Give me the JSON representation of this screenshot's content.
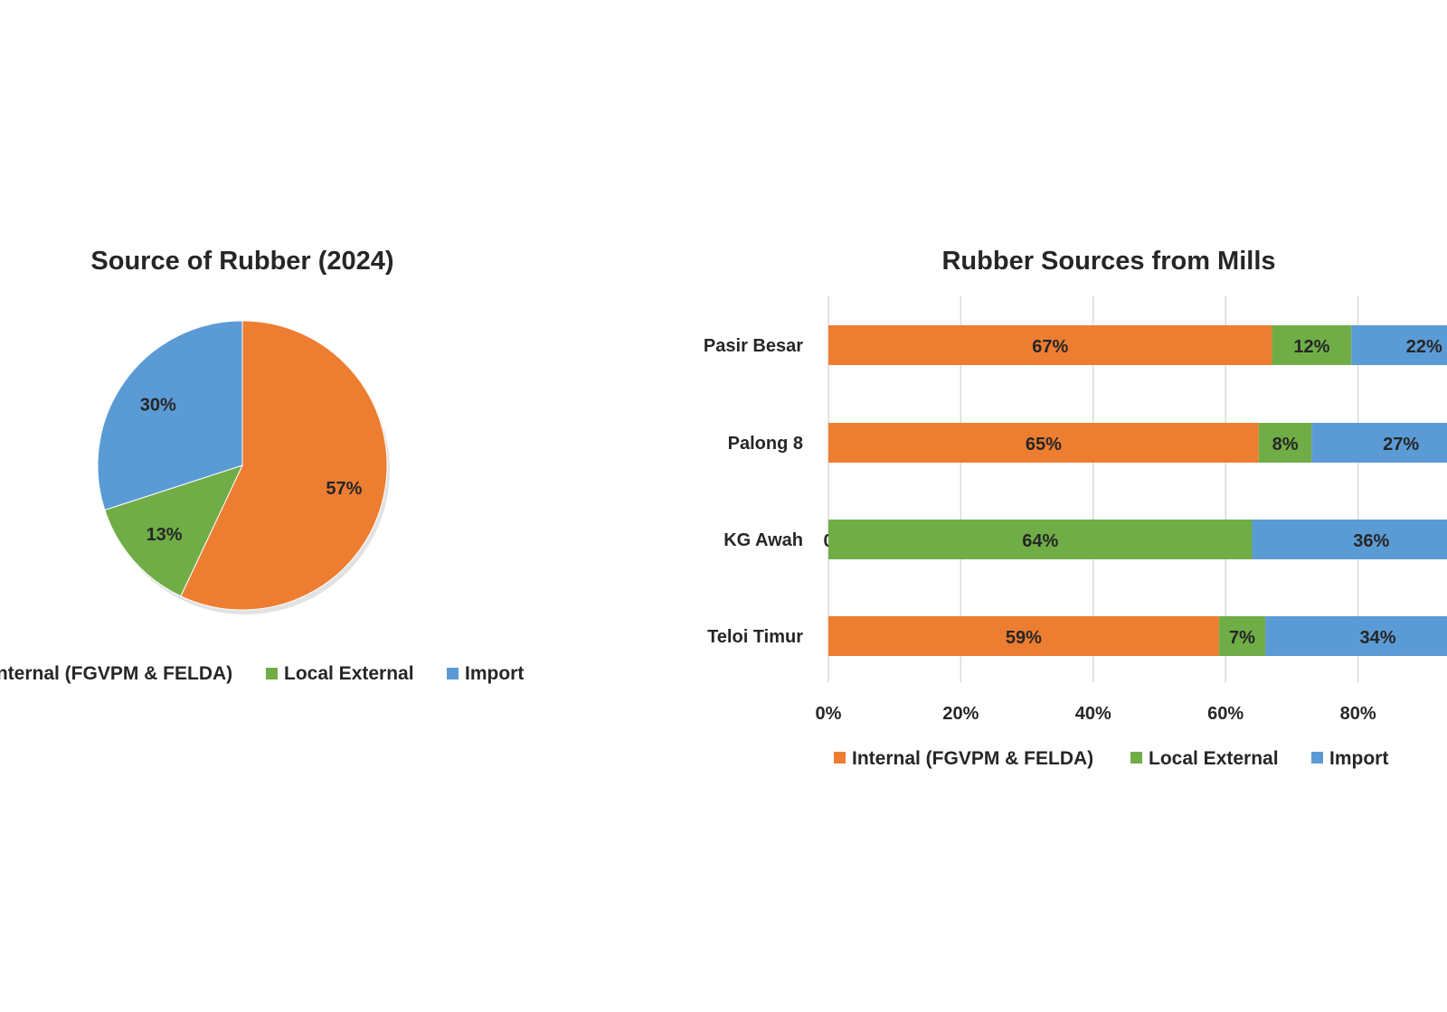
{
  "colors": {
    "internal": "#ED7D31",
    "local_external": "#70AD47",
    "import": "#5B9BD5"
  },
  "chart_data": [
    {
      "type": "pie",
      "title": "Source of Rubber (2024)",
      "slices": [
        {
          "name": "Internal (FGVPM & FELDA)",
          "value": 57,
          "label": "57%",
          "color_key": "internal"
        },
        {
          "name": "Local External",
          "value": 13,
          "label": "13%",
          "color_key": "local_external"
        },
        {
          "name": "Import",
          "value": 30,
          "label": "30%",
          "color_key": "import"
        }
      ],
      "legend": [
        "Internal (FGVPM & FELDA)",
        "Local External",
        "Import"
      ],
      "legend_position": "bottom"
    },
    {
      "type": "bar",
      "orientation": "horizontal",
      "stacked": true,
      "title": "Rubber Sources from Mills",
      "categories": [
        "Pasir Besar",
        "Palong 8",
        "KG Awah",
        "Teloi Timur"
      ],
      "series": [
        {
          "name": "Internal (FGVPM & FELDA)",
          "color_key": "internal",
          "values": [
            67,
            65,
            0,
            59
          ],
          "labels": [
            "67%",
            "65%",
            "0",
            "59%"
          ]
        },
        {
          "name": "Local External",
          "color_key": "local_external",
          "values": [
            12,
            8,
            64,
            7
          ],
          "labels": [
            "12%",
            "8%",
            "64%",
            "7%"
          ]
        },
        {
          "name": "Import",
          "color_key": "import",
          "values": [
            22,
            27,
            36,
            34
          ],
          "labels": [
            "22%",
            "27%",
            "36%",
            "34%"
          ]
        }
      ],
      "x_ticks": [
        "0%",
        "20%",
        "40%",
        "60%",
        "80%"
      ],
      "xlim": [
        0,
        100
      ],
      "grid": true,
      "legend": [
        "Internal (FGVPM & FELDA)",
        "Local External",
        "Import"
      ],
      "legend_position": "bottom"
    }
  ]
}
